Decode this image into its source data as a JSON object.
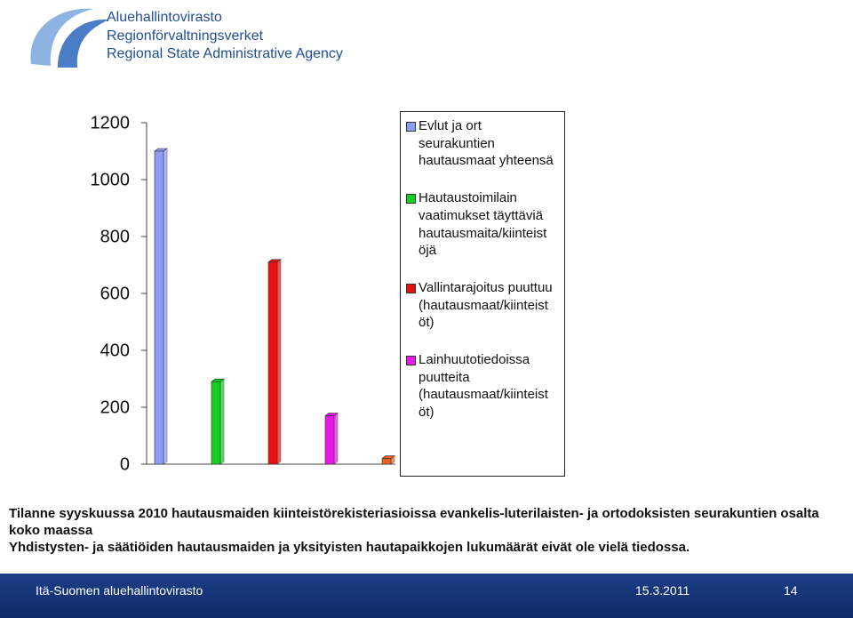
{
  "header": {
    "org_lines": [
      "Aluehallintovirasto",
      "Regionförvaltningsverket",
      "Regional State Administrative Agency"
    ]
  },
  "chart_data": {
    "type": "bar",
    "ylim": [
      0,
      1200
    ],
    "yticks": [
      0,
      200,
      400,
      600,
      800,
      1000,
      1200
    ],
    "series": [
      {
        "name": "Evlut ja ort seurakuntien hautausmaat yhteensä",
        "color": "#8f9cf5",
        "values": [
          1100
        ]
      },
      {
        "name": "Hautaustoimilain vaatimukset täyttäviä hautausmaita/kiinteistöjä",
        "color": "#10d020",
        "values": [
          290
        ]
      },
      {
        "name": "Vallintarajoitus puuttuu (hautausmaat/kiinteistöt)",
        "color": "#e81010",
        "values": [
          710
        ]
      },
      {
        "name": "Lainhuutotiedoissa puutteita (hautausmaat/kiinteistöt)",
        "color": "#e818e8",
        "values": [
          170
        ]
      },
      {
        "color": "#f06020",
        "values": [
          20
        ]
      }
    ]
  },
  "caption": [
    "Tilanne syyskuussa 2010 hautausmaiden kiinteistörekisteriasioissa evankelis-luterilaisten- ja ortodoksisten seurakuntien osalta koko maassa",
    "Yhdistysten- ja säätiöiden hautausmaiden ja yksityisten hautapaikkojen lukumäärät eivät ole vielä tiedossa."
  ],
  "footer": {
    "org": "Itä-Suomen aluehallintovirasto",
    "date": "15.3.2011",
    "page": "14"
  }
}
